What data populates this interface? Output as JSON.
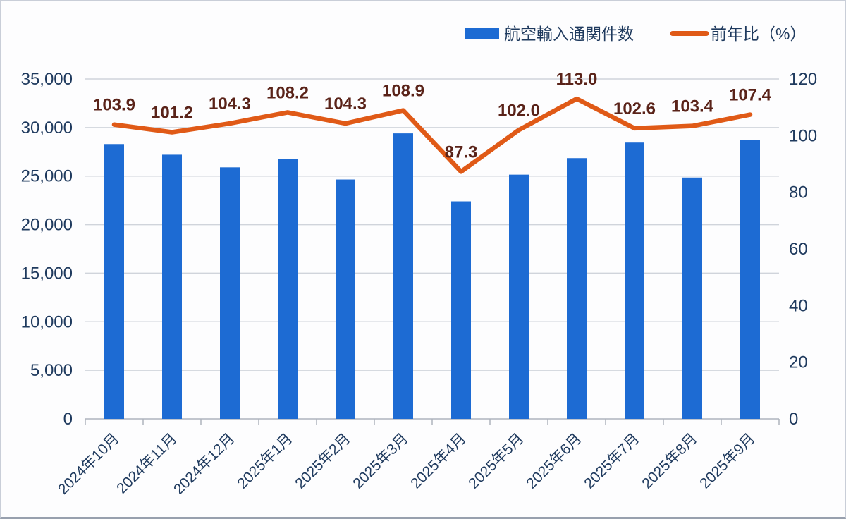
{
  "chart_data": {
    "type": "combo",
    "categories": [
      "2024年10月",
      "2024年11月",
      "2024年12月",
      "2025年1月",
      "2025年2月",
      "2025年3月",
      "2025年4月",
      "2025年5月",
      "2025年6月",
      "2025年7月",
      "2025年8月",
      "2025年9月"
    ],
    "series": [
      {
        "name": "航空輸入通関件数",
        "type": "bar",
        "axis": "left",
        "values": [
          28300,
          27200,
          25900,
          26750,
          24650,
          29400,
          22400,
          25150,
          26850,
          28450,
          24850,
          28750
        ],
        "color": "#1d6bd3"
      },
      {
        "name": "前年比（%）",
        "type": "line",
        "axis": "right",
        "values": [
          103.9,
          101.2,
          104.3,
          108.2,
          104.3,
          108.9,
          87.3,
          102.0,
          113.0,
          102.6,
          103.4,
          107.4
        ],
        "color": "#e05a17",
        "data_labels": [
          "103.9",
          "101.2",
          "104.3",
          "108.2",
          "104.3",
          "108.9",
          "87.3",
          "102.0",
          "113.0",
          "102.6",
          "103.4",
          "107.4"
        ],
        "data_label_color": "#5a2319"
      }
    ],
    "left_axis": {
      "min": 0,
      "max": 35000,
      "step": 5000,
      "tick_labels": [
        "0",
        "5,000",
        "10,000",
        "15,000",
        "20,000",
        "25,000",
        "30,000",
        "35,000"
      ]
    },
    "right_axis": {
      "min": 0,
      "max": 120,
      "step": 20,
      "tick_labels": [
        "0",
        "20",
        "40",
        "60",
        "80",
        "100",
        "120"
      ]
    },
    "grid": true,
    "legend_position": "top-right",
    "title": "",
    "xlabel": "",
    "ylabel": ""
  },
  "colors": {
    "axis_text": "#1f3a5e",
    "gridline": "#d0d4db",
    "baseline": "#aeb3bd",
    "background": "#fdfdfe"
  },
  "legend": {
    "bar_label": "航空輸入通関件数",
    "line_label": "前年比（%）"
  }
}
